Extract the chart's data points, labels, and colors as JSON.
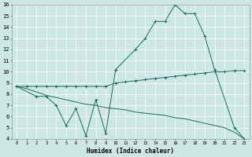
{
  "xlabel": "Humidex (Indice chaleur)",
  "bg_color": "#cde8e4",
  "line_color": "#1a6b5a",
  "grid_color": "#ffffff",
  "xlim": [
    -0.5,
    23.5
  ],
  "ylim": [
    4,
    16
  ],
  "xticks": [
    0,
    1,
    2,
    3,
    4,
    5,
    6,
    7,
    8,
    9,
    10,
    11,
    12,
    13,
    14,
    15,
    16,
    17,
    18,
    19,
    20,
    21,
    22,
    23
  ],
  "yticks": [
    4,
    5,
    6,
    7,
    8,
    9,
    10,
    11,
    12,
    13,
    14,
    15,
    16
  ],
  "upper_x": [
    0,
    1,
    2,
    3,
    4,
    5,
    6,
    7,
    8,
    9,
    10,
    11,
    12,
    13,
    14,
    15,
    16,
    17,
    18,
    19,
    20,
    21,
    22,
    23
  ],
  "upper_y": [
    8.7,
    8.7,
    8.7,
    8.7,
    8.7,
    8.7,
    8.7,
    8.7,
    8.7,
    8.7,
    9.0,
    9.1,
    9.2,
    9.3,
    9.4,
    9.5,
    9.6,
    9.7,
    9.8,
    9.9,
    10.0,
    10.0,
    10.1,
    10.1
  ],
  "lower_x": [
    0,
    1,
    2,
    3,
    4,
    5,
    6,
    7,
    8,
    9,
    10,
    11,
    12,
    13,
    14,
    15,
    16,
    17,
    18,
    19,
    20,
    21,
    22,
    23
  ],
  "lower_y": [
    8.7,
    8.5,
    8.2,
    7.9,
    7.7,
    7.5,
    7.3,
    7.1,
    7.0,
    6.8,
    6.7,
    6.6,
    6.4,
    6.3,
    6.2,
    6.1,
    5.9,
    5.8,
    5.6,
    5.4,
    5.2,
    5.0,
    4.6,
    4.0
  ],
  "zigzag_x": [
    0,
    2,
    3,
    4,
    5,
    6,
    7,
    8,
    9,
    10,
    12,
    13,
    14,
    15,
    16,
    17,
    18,
    19,
    20,
    22,
    23
  ],
  "zigzag_y": [
    8.7,
    7.8,
    7.8,
    7.0,
    5.2,
    6.7,
    4.3,
    7.5,
    4.5,
    10.2,
    12.0,
    13.0,
    14.5,
    14.5,
    16.0,
    15.2,
    15.2,
    13.2,
    10.2,
    5.0,
    4.0
  ]
}
